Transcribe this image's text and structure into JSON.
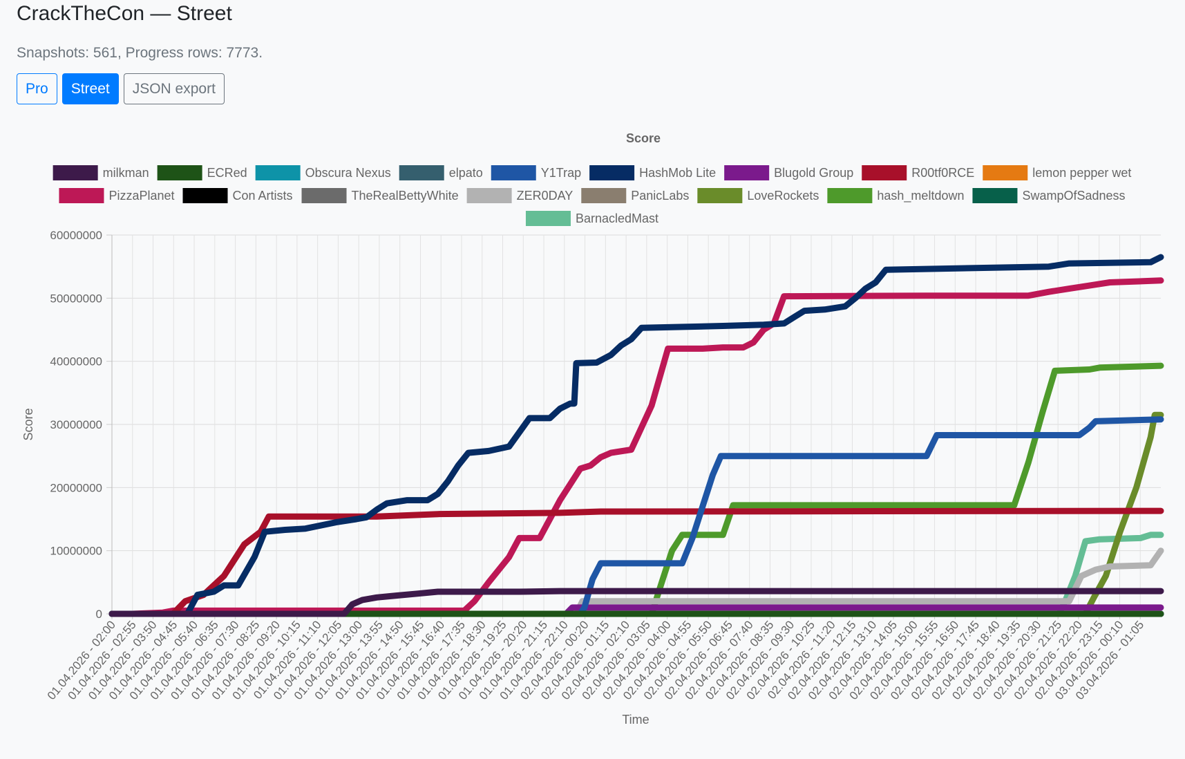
{
  "page": {
    "title": "CrackTheCon — Street",
    "subtitle": "Snapshots: 561, Progress rows: 7773."
  },
  "toolbar": {
    "pro_label": "Pro",
    "street_label": "Street",
    "json_label": "JSON export"
  },
  "chart_data": {
    "type": "line",
    "title": "Score",
    "xlabel": "Time",
    "ylabel": "Score",
    "ylim": [
      0,
      60000000
    ],
    "y_ticks": [
      0,
      10000000,
      20000000,
      30000000,
      40000000,
      50000000,
      60000000
    ],
    "grid": true,
    "legend_position": "top",
    "x_range_hours": [
      0,
      51.5
    ],
    "x_tick_labels": [
      "01.04.2026 - 02:00",
      "01.04.2026 - 02:55",
      "01.04.2026 - 03:50",
      "01.04.2026 - 04:45",
      "01.04.2026 - 05:40",
      "01.04.2026 - 06:35",
      "01.04.2026 - 07:30",
      "01.04.2026 - 08:25",
      "01.04.2026 - 09:20",
      "01.04.2026 - 10:15",
      "01.04.2026 - 11:10",
      "01.04.2026 - 12:05",
      "01.04.2026 - 13:00",
      "01.04.2026 - 13:55",
      "01.04.2026 - 14:50",
      "01.04.2026 - 15:45",
      "01.04.2026 - 16:40",
      "01.04.2026 - 17:35",
      "01.04.2026 - 18:30",
      "01.04.2026 - 19:25",
      "01.04.2026 - 20:20",
      "01.04.2026 - 21:15",
      "01.04.2026 - 22:10",
      "02.04.2026 - 00:20",
      "02.04.2026 - 01:15",
      "02.04.2026 - 02:10",
      "02.04.2026 - 03:05",
      "02.04.2026 - 04:00",
      "02.04.2026 - 04:55",
      "02.04.2026 - 05:50",
      "02.04.2026 - 06:45",
      "02.04.2026 - 07:40",
      "02.04.2026 - 08:35",
      "02.04.2026 - 09:30",
      "02.04.2026 - 10:25",
      "02.04.2026 - 11:20",
      "02.04.2026 - 12:15",
      "02.04.2026 - 13:10",
      "02.04.2026 - 14:05",
      "02.04.2026 - 15:00",
      "02.04.2026 - 15:55",
      "02.04.2026 - 16:50",
      "02.04.2026 - 17:45",
      "02.04.2026 - 18:40",
      "02.04.2026 - 19:35",
      "02.04.2026 - 20:30",
      "02.04.2026 - 21:25",
      "02.04.2026 - 22:20",
      "02.04.2026 - 23:15",
      "03.04.2026 - 00:10",
      "03.04.2026 - 01:05"
    ],
    "series": [
      {
        "name": "milkman",
        "color": "#3d1a4a",
        "points": [
          [
            0,
            0
          ],
          [
            11.4,
            0
          ],
          [
            11.8,
            1500000
          ],
          [
            12.3,
            2200000
          ],
          [
            13,
            2600000
          ],
          [
            14,
            2900000
          ],
          [
            15,
            3200000
          ],
          [
            16,
            3500000
          ],
          [
            20,
            3500000
          ],
          [
            22,
            3600000
          ],
          [
            51.5,
            3600000
          ]
        ]
      },
      {
        "name": "ECRed",
        "color": "#1e5317",
        "points": [
          [
            0,
            0
          ],
          [
            51.5,
            0
          ]
        ]
      },
      {
        "name": "Obscura Nexus",
        "color": "#0e93a8",
        "points": [
          [
            0,
            0
          ],
          [
            51.5,
            0
          ]
        ]
      },
      {
        "name": "elpato",
        "color": "#355f6e",
        "points": [
          [
            0,
            0
          ],
          [
            51.5,
            0
          ]
        ]
      },
      {
        "name": "Y1Trap",
        "color": "#1f56a5",
        "points": [
          [
            0,
            0
          ],
          [
            23,
            0
          ],
          [
            23.2,
            1000000
          ],
          [
            23.6,
            5500000
          ],
          [
            24,
            8000000
          ],
          [
            28,
            8000000
          ],
          [
            28.5,
            12000000
          ],
          [
            29,
            17000000
          ],
          [
            29.5,
            22000000
          ],
          [
            29.9,
            25000000
          ],
          [
            40,
            25000000
          ],
          [
            40.5,
            28300000
          ],
          [
            47.5,
            28300000
          ],
          [
            48,
            29500000
          ],
          [
            48.3,
            30500000
          ],
          [
            51.5,
            30800000
          ]
        ]
      },
      {
        "name": "HashMob Lite",
        "color": "#062c64",
        "points": [
          [
            0,
            0
          ],
          [
            3.7,
            0
          ],
          [
            4.2,
            3000000
          ],
          [
            5,
            3500000
          ],
          [
            5.5,
            4500000
          ],
          [
            6.2,
            4500000
          ],
          [
            7,
            9000000
          ],
          [
            7.5,
            13000000
          ],
          [
            8.5,
            13300000
          ],
          [
            9.5,
            13500000
          ],
          [
            11,
            14500000
          ],
          [
            12,
            15000000
          ],
          [
            12.5,
            15300000
          ],
          [
            13,
            16500000
          ],
          [
            13.5,
            17500000
          ],
          [
            14.5,
            18000000
          ],
          [
            15.5,
            18000000
          ],
          [
            16,
            19000000
          ],
          [
            16.5,
            21000000
          ],
          [
            17,
            23500000
          ],
          [
            17.5,
            25500000
          ],
          [
            18.5,
            25800000
          ],
          [
            19.5,
            26500000
          ],
          [
            20.5,
            31000000
          ],
          [
            21.5,
            31000000
          ],
          [
            22,
            32500000
          ],
          [
            22.5,
            33300000
          ],
          [
            22.7,
            33300000
          ],
          [
            22.8,
            39700000
          ],
          [
            23.8,
            39800000
          ],
          [
            24.5,
            41000000
          ],
          [
            25,
            42500000
          ],
          [
            25.5,
            43500000
          ],
          [
            26,
            45300000
          ],
          [
            30,
            45600000
          ],
          [
            32,
            45800000
          ],
          [
            33,
            46000000
          ],
          [
            33.5,
            47000000
          ],
          [
            34,
            48000000
          ],
          [
            35,
            48200000
          ],
          [
            36,
            48700000
          ],
          [
            36.5,
            50000000
          ],
          [
            37,
            51500000
          ],
          [
            37.5,
            52500000
          ],
          [
            38,
            54500000
          ],
          [
            46,
            55000000
          ],
          [
            47,
            55500000
          ],
          [
            51,
            55700000
          ],
          [
            51.5,
            56500000
          ]
        ]
      },
      {
        "name": "Blugold Group",
        "color": "#7b1a8c",
        "points": [
          [
            0,
            0
          ],
          [
            22.3,
            0
          ],
          [
            22.6,
            1000000
          ],
          [
            51.5,
            1000000
          ]
        ]
      },
      {
        "name": "R00tf0RCE",
        "color": "#a8102a",
        "points": [
          [
            0,
            0
          ],
          [
            3,
            0
          ],
          [
            3.6,
            2000000
          ],
          [
            4.5,
            3000000
          ],
          [
            5.5,
            6000000
          ],
          [
            6.5,
            11000000
          ],
          [
            7.3,
            13000000
          ],
          [
            7.7,
            15400000
          ],
          [
            13,
            15400000
          ],
          [
            14.5,
            15600000
          ],
          [
            16,
            15800000
          ],
          [
            22,
            16000000
          ],
          [
            24,
            16200000
          ],
          [
            51.5,
            16300000
          ]
        ]
      },
      {
        "name": "lemon pepper wet",
        "color": "#e57a12",
        "points": [
          [
            0,
            0
          ],
          [
            51.5,
            0
          ]
        ]
      },
      {
        "name": "PizzaPlanet",
        "color": "#bd1856",
        "points": [
          [
            0,
            0
          ],
          [
            1,
            0
          ],
          [
            2.5,
            200000
          ],
          [
            3,
            500000
          ],
          [
            17.3,
            500000
          ],
          [
            17.8,
            2000000
          ],
          [
            18.5,
            5000000
          ],
          [
            19.5,
            9000000
          ],
          [
            20,
            12000000
          ],
          [
            21,
            12000000
          ],
          [
            22,
            18000000
          ],
          [
            23,
            23000000
          ],
          [
            23.5,
            23500000
          ],
          [
            24,
            24800000
          ],
          [
            24.5,
            25500000
          ],
          [
            25.5,
            26000000
          ],
          [
            26.5,
            33000000
          ],
          [
            27.3,
            42000000
          ],
          [
            29,
            42000000
          ],
          [
            30,
            42200000
          ],
          [
            31,
            42200000
          ],
          [
            31.5,
            43000000
          ],
          [
            32,
            45000000
          ],
          [
            32.5,
            46000000
          ],
          [
            33,
            50300000
          ],
          [
            40,
            50400000
          ],
          [
            45,
            50400000
          ],
          [
            46,
            51000000
          ],
          [
            47,
            51500000
          ],
          [
            48,
            52000000
          ],
          [
            49,
            52500000
          ],
          [
            51.5,
            52800000
          ]
        ]
      },
      {
        "name": "Con Artists",
        "color": "#000000",
        "points": [
          [
            0,
            0
          ],
          [
            51.5,
            0
          ]
        ]
      },
      {
        "name": "TheRealBettyWhite",
        "color": "#6b6b6b",
        "points": [
          [
            0,
            0
          ],
          [
            51.5,
            0
          ]
        ]
      },
      {
        "name": "ZER0DAY",
        "color": "#b2b2b2",
        "points": [
          [
            0,
            0
          ],
          [
            22.8,
            0
          ],
          [
            23.1,
            2000000
          ],
          [
            47,
            2000000
          ],
          [
            47.3,
            4000000
          ],
          [
            47.6,
            6000000
          ],
          [
            48.3,
            7000000
          ],
          [
            49,
            7500000
          ],
          [
            51,
            7700000
          ],
          [
            51.5,
            10000000
          ]
        ]
      },
      {
        "name": "PanicLabs",
        "color": "#8a7e6f",
        "points": [
          [
            0,
            0
          ],
          [
            51.5,
            0
          ]
        ]
      },
      {
        "name": "LoveRockets",
        "color": "#6a8c2a",
        "points": [
          [
            0,
            0
          ],
          [
            47.8,
            0
          ],
          [
            48.2,
            2500000
          ],
          [
            48.8,
            6000000
          ],
          [
            49.5,
            13000000
          ],
          [
            50.3,
            20000000
          ],
          [
            51,
            28000000
          ],
          [
            51.2,
            31500000
          ],
          [
            51.5,
            31500000
          ]
        ]
      },
      {
        "name": "hash_meltdown",
        "color": "#4e9a2b",
        "points": [
          [
            0,
            0
          ],
          [
            26.5,
            0
          ],
          [
            27,
            5000000
          ],
          [
            27.5,
            10000000
          ],
          [
            28,
            12500000
          ],
          [
            30,
            12500000
          ],
          [
            30.5,
            17200000
          ],
          [
            44.3,
            17200000
          ],
          [
            45,
            24000000
          ],
          [
            45.7,
            32000000
          ],
          [
            46.3,
            38500000
          ],
          [
            48,
            38700000
          ],
          [
            48.5,
            39000000
          ],
          [
            51.5,
            39300000
          ]
        ]
      },
      {
        "name": "SwampOfSadness",
        "color": "#07604a",
        "points": [
          [
            0,
            0
          ],
          [
            51.5,
            0
          ]
        ]
      },
      {
        "name": "BarnacledMast",
        "color": "#64bd95",
        "points": [
          [
            0,
            0
          ],
          [
            46.5,
            0
          ],
          [
            46.8,
            2000000
          ],
          [
            47.3,
            6000000
          ],
          [
            47.8,
            11500000
          ],
          [
            48.5,
            11800000
          ],
          [
            50.5,
            12000000
          ],
          [
            51,
            12500000
          ],
          [
            51.5,
            12500000
          ]
        ]
      }
    ]
  }
}
